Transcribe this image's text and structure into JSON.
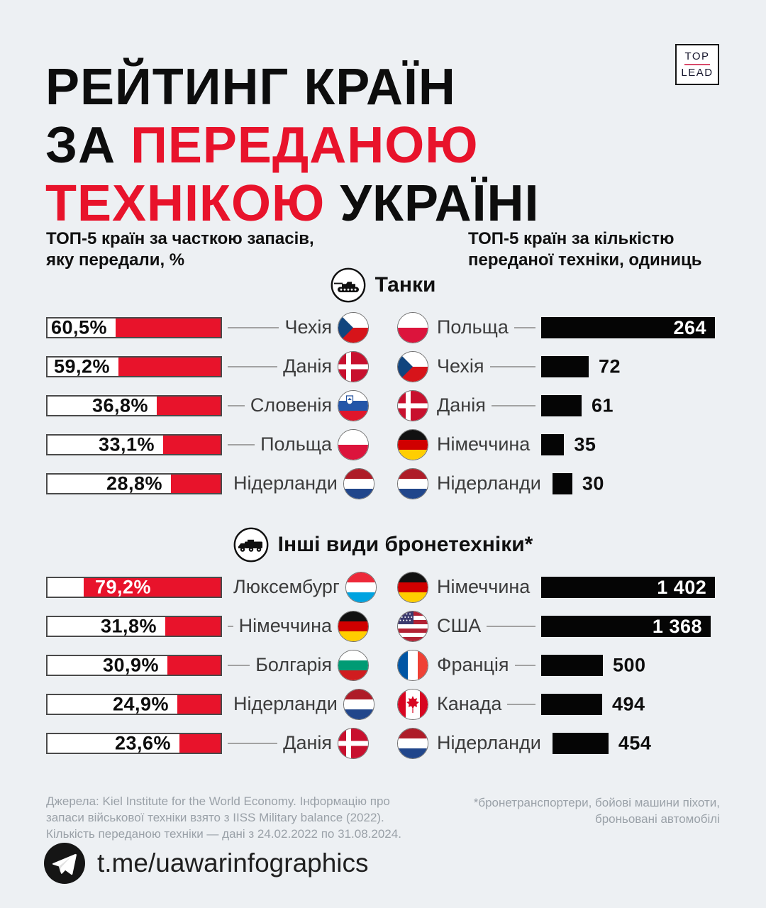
{
  "colors": {
    "background": "#edf0f3",
    "red": "#e8132b",
    "bar_black": "#050505",
    "logo_divider": "#d84a6a"
  },
  "title": {
    "l1": "РЕЙТИНГ КРАЇН",
    "l2a": "ЗА ",
    "l2b": "ПЕРЕДАНОЮ",
    "l3a": "ТЕХНІКОЮ ",
    "l3b": "УКРАЇНІ"
  },
  "logo": {
    "top": "TOP",
    "lead": "LEAD"
  },
  "headers": {
    "left_l1": "ТОП-5 країн за часткою запасів,",
    "left_l2": "яку передали, %",
    "right_l1": "ТОП-5 країн за кількістю",
    "right_l2": "переданої техніки, одиниць"
  },
  "sections": [
    {
      "title": "Танки",
      "icon": "tank-icon",
      "left_rows": [
        {
          "country": "Чехія",
          "flag": "czechia",
          "label": "60,5%",
          "value": 60.5,
          "label_inside": false
        },
        {
          "country": "Данія",
          "flag": "denmark",
          "label": "59,2%",
          "value": 59.2,
          "label_inside": false
        },
        {
          "country": "Словенія",
          "flag": "slovenia",
          "label": "36,8%",
          "value": 36.8,
          "label_inside": false
        },
        {
          "country": "Польща",
          "flag": "poland",
          "label": "33,1%",
          "value": 33.1,
          "label_inside": false
        },
        {
          "country": "Нідерланди",
          "flag": "netherlands",
          "label": "28,8%",
          "value": 28.8,
          "label_inside": false
        }
      ],
      "right_max": 264,
      "right_rows": [
        {
          "country": "Польща",
          "flag": "poland",
          "label": "264",
          "value": 264,
          "label_inside": true
        },
        {
          "country": "Чехія",
          "flag": "czechia",
          "label": "72",
          "value": 72,
          "label_inside": false
        },
        {
          "country": "Данія",
          "flag": "denmark",
          "label": "61",
          "value": 61,
          "label_inside": false
        },
        {
          "country": "Німеччина",
          "flag": "germany",
          "label": "35",
          "value": 35,
          "label_inside": false
        },
        {
          "country": "Нідерланди",
          "flag": "netherlands",
          "label": "30",
          "value": 30,
          "label_inside": false
        }
      ]
    },
    {
      "title": "Інші види бронетехніки*",
      "icon": "apc-icon",
      "left_rows": [
        {
          "country": "Люксембург",
          "flag": "luxembourg",
          "label": "79,2%",
          "value": 79.2,
          "label_inside": true
        },
        {
          "country": "Німеччина",
          "flag": "germany",
          "label": "31,8%",
          "value": 31.8,
          "label_inside": false
        },
        {
          "country": "Болгарія",
          "flag": "bulgaria",
          "label": "30,9%",
          "value": 30.9,
          "label_inside": false
        },
        {
          "country": "Нідерланди",
          "flag": "netherlands",
          "label": "24,9%",
          "value": 24.9,
          "label_inside": false
        },
        {
          "country": "Данія",
          "flag": "denmark",
          "label": "23,6%",
          "value": 23.6,
          "label_inside": false
        }
      ],
      "right_max": 1402,
      "right_rows": [
        {
          "country": "Німеччина",
          "flag": "germany",
          "label": "1 402",
          "value": 1402,
          "label_inside": true
        },
        {
          "country": "США",
          "flag": "usa",
          "label": "1 368",
          "value": 1368,
          "label_inside": true
        },
        {
          "country": "Франція",
          "flag": "france",
          "label": "500",
          "value": 500,
          "label_inside": false
        },
        {
          "country": "Канада",
          "flag": "canada",
          "label": "494",
          "value": 494,
          "label_inside": false
        },
        {
          "country": "Нідерланди",
          "flag": "netherlands",
          "label": "454",
          "value": 454,
          "label_inside": false
        }
      ]
    }
  ],
  "chart_data": [
    {
      "type": "bar",
      "title": "Танки — ТОП-5 країн за часткою запасів, яку передали, %",
      "categories": [
        "Чехія",
        "Данія",
        "Словенія",
        "Польща",
        "Нідерланди"
      ],
      "values": [
        60.5,
        59.2,
        36.8,
        33.1,
        28.8
      ],
      "xlabel": "",
      "ylabel": "% запасів",
      "xlim": [
        0,
        100
      ]
    },
    {
      "type": "bar",
      "title": "Танки — ТОП-5 країн за кількістю переданої техніки, одиниць",
      "categories": [
        "Польща",
        "Чехія",
        "Данія",
        "Німеччина",
        "Нідерланди"
      ],
      "values": [
        264,
        72,
        61,
        35,
        30
      ],
      "xlabel": "",
      "ylabel": "одиниць",
      "xlim": [
        0,
        264
      ]
    },
    {
      "type": "bar",
      "title": "Інші види бронетехніки* — ТОП-5 країн за часткою запасів, яку передали, %",
      "categories": [
        "Люксембург",
        "Німеччина",
        "Болгарія",
        "Нідерланди",
        "Данія"
      ],
      "values": [
        79.2,
        31.8,
        30.9,
        24.9,
        23.6
      ],
      "xlabel": "",
      "ylabel": "% запасів",
      "xlim": [
        0,
        100
      ]
    },
    {
      "type": "bar",
      "title": "Інші види бронетехніки* — ТОП-5 країн за кількістю переданої техніки, одиниць",
      "categories": [
        "Німеччина",
        "США",
        "Франція",
        "Канада",
        "Нідерланди"
      ],
      "values": [
        1402,
        1368,
        500,
        494,
        454
      ],
      "xlabel": "",
      "ylabel": "одиниць",
      "xlim": [
        0,
        1402
      ]
    }
  ],
  "footer": {
    "sources": [
      "Джерела: Kiel Institute for the World Economy. Інформацію про",
      "запаси військової техніки взято з IISS Military balance (2022).",
      "Кількість переданою техніки — дані з 24.02.2022 по 31.08.2024."
    ],
    "footnote": [
      "*бронетранспортери, бойові машини піхоти,",
      "броньовані автомобілі"
    ],
    "telegram": "t.me/uawarinfographics"
  }
}
